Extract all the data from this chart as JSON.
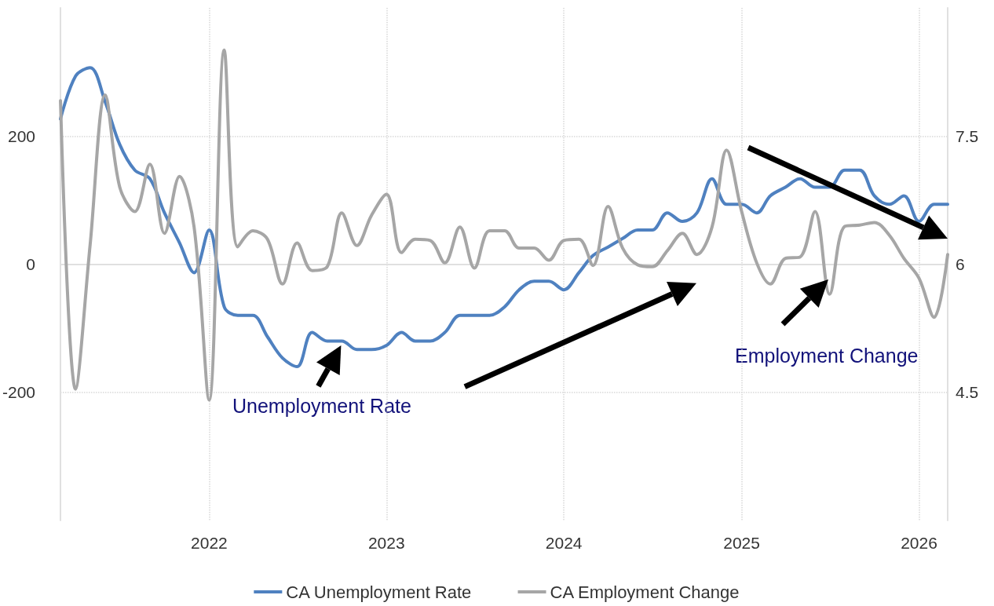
{
  "chart_data": {
    "type": "line",
    "x": [
      "2021-03",
      "2021-04",
      "2021-05",
      "2021-06",
      "2021-07",
      "2021-08",
      "2021-09",
      "2021-10",
      "2021-11",
      "2021-12",
      "2022-01",
      "2022-02",
      "2022-03",
      "2022-04",
      "2022-05",
      "2022-06",
      "2022-07",
      "2022-08",
      "2022-09",
      "2022-10",
      "2022-11",
      "2022-12",
      "2023-01",
      "2023-02",
      "2023-03",
      "2023-04",
      "2023-05",
      "2023-06",
      "2023-07",
      "2023-08",
      "2023-09",
      "2023-10",
      "2023-11",
      "2023-12",
      "2024-01",
      "2024-02",
      "2024-03",
      "2024-04",
      "2024-05",
      "2024-06",
      "2024-07",
      "2024-08",
      "2024-09",
      "2024-10",
      "2024-11",
      "2024-12",
      "2025-01",
      "2025-02",
      "2025-03",
      "2025-04",
      "2025-05",
      "2025-06",
      "2025-07",
      "2025-08",
      "2025-09",
      "2025-10",
      "2025-11",
      "2025-12",
      "2026-01",
      "2026-02",
      "2026-03"
    ],
    "series": [
      {
        "name": "CA Unemployment Rate",
        "color": "#4f81c0",
        "axis": "y2",
        "values": [
          7.7,
          8.2,
          8.3,
          7.9,
          7.4,
          7.1,
          7.0,
          6.6,
          6.25,
          5.9,
          6.4,
          5.5,
          5.4,
          5.4,
          5.15,
          4.9,
          4.8,
          5.2,
          5.1,
          5.1,
          5.0,
          5.0,
          5.05,
          5.2,
          5.1,
          5.1,
          5.2,
          5.4,
          5.4,
          5.4,
          5.5,
          5.7,
          5.8,
          5.8,
          5.7,
          5.9,
          6.1,
          6.2,
          6.3,
          6.4,
          6.4,
          6.6,
          6.5,
          6.6,
          7.0,
          6.7,
          6.7,
          6.6,
          6.8,
          6.9,
          7.0,
          6.9,
          6.9,
          7.1,
          7.1,
          6.8,
          6.7,
          6.8,
          6.5,
          6.7,
          6.7
        ]
      },
      {
        "name": "CA Employment Change",
        "color": "#a6a6a6",
        "values": [
          255,
          -195,
          30,
          264,
          120,
          82,
          156,
          48,
          137,
          58,
          -212,
          334,
          27,
          52,
          39,
          -31,
          33,
          -10,
          -4,
          80,
          29,
          76,
          109,
          18,
          39,
          37,
          2,
          58,
          -6,
          52,
          52,
          25,
          25,
          6,
          37,
          39,
          -2,
          90,
          25,
          -1,
          -4,
          21,
          48,
          15,
          58,
          178,
          82,
          2,
          -31,
          9,
          11,
          82,
          -47,
          59,
          61,
          65,
          45,
          9,
          -22,
          -83,
          15
        ]
      }
    ],
    "xlim": [
      "2021-03",
      "2026-03"
    ],
    "xticks": [
      "2022",
      "2023",
      "2024",
      "2025",
      "2026"
    ],
    "ylim": [
      -400,
      400
    ],
    "yticks": [
      -200,
      0,
      200
    ],
    "y2lim": [
      3,
      9
    ],
    "y2ticks": [
      4.5,
      6,
      7.5
    ],
    "annotations": [
      "Unemployment Rate",
      "Employment Change"
    ],
    "grid": true,
    "legend": "bottom",
    "marker": "none",
    "line_style": "solid"
  }
}
